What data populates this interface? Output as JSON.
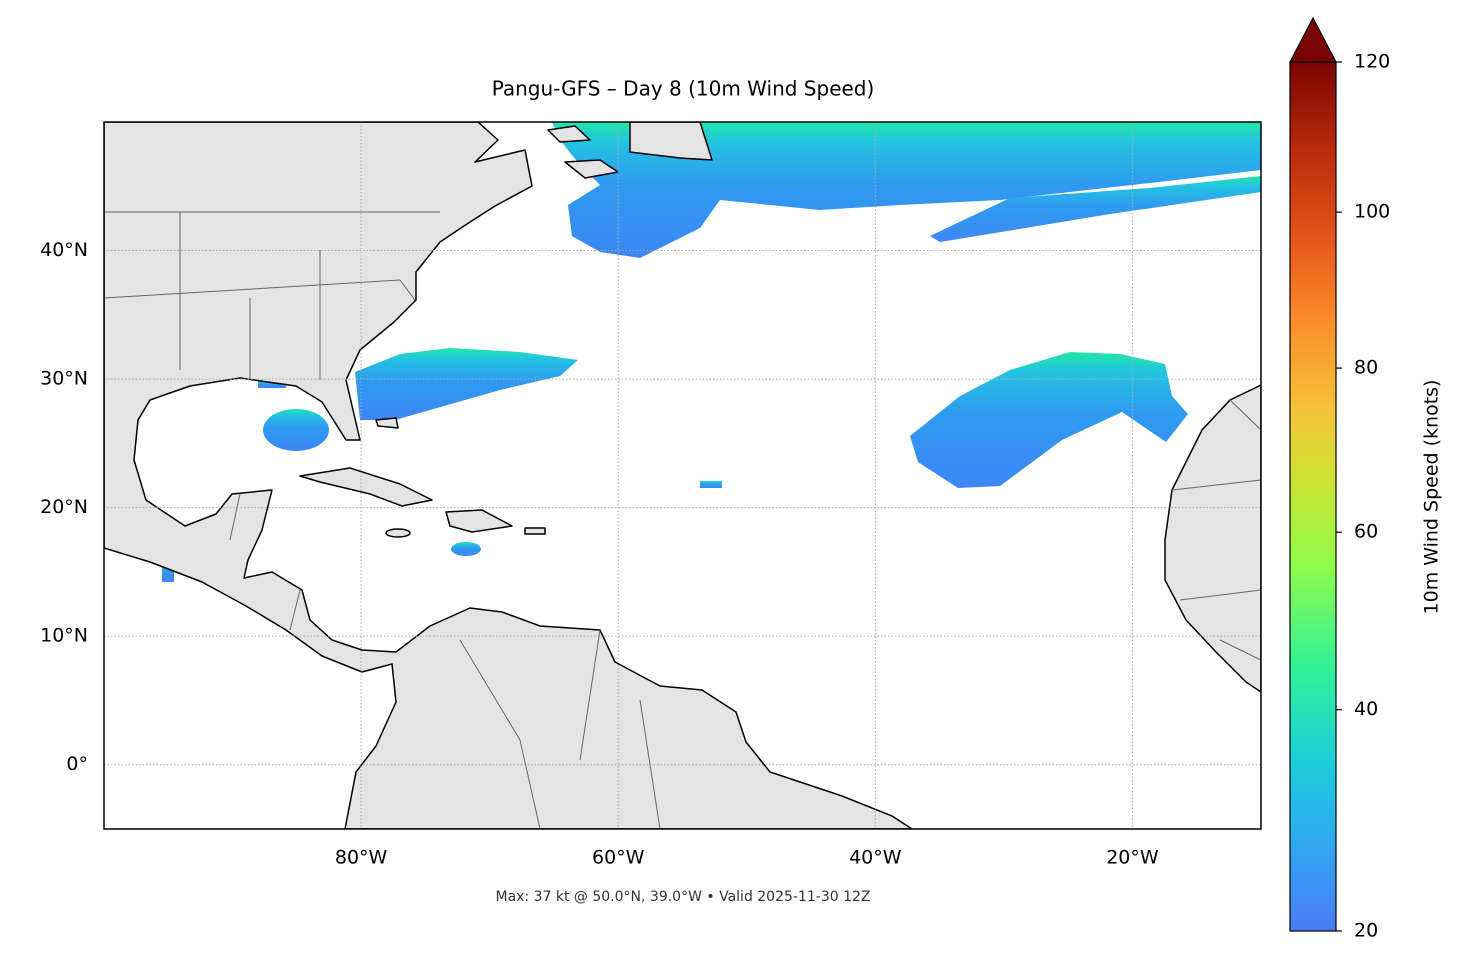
{
  "title": "Pangu-GFS – Day 8 (10m Wind Speed)",
  "map": {
    "xlim": [
      -100,
      -10
    ],
    "ylim": [
      -5,
      50
    ],
    "xticks": [
      {
        "value": -80,
        "label": "80°W"
      },
      {
        "value": -60,
        "label": "60°W"
      },
      {
        "value": -40,
        "label": "40°W"
      },
      {
        "value": -20,
        "label": "20°W"
      }
    ],
    "yticks": [
      {
        "value": 0,
        "label": "0°"
      },
      {
        "value": 10,
        "label": "10°N"
      },
      {
        "value": 20,
        "label": "20°N"
      },
      {
        "value": 30,
        "label": "30°N"
      },
      {
        "value": 40,
        "label": "40°N"
      }
    ],
    "grid": true
  },
  "colorbar": {
    "label": "10m Wind Speed (knots)",
    "lim": [
      20,
      120
    ],
    "ticks": [
      20,
      40,
      60,
      80,
      100,
      120
    ],
    "norm": "power",
    "gamma": 0.85,
    "extend": "max"
  },
  "footer": "Max: 37 kt @ 50.0°N, 39.0°W • Valid 2025-11-30 12Z"
}
